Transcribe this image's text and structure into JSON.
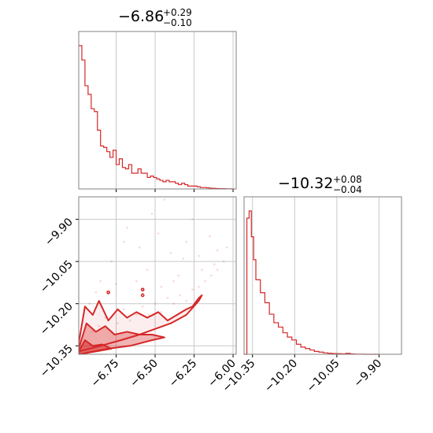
{
  "chart_data": [
    {
      "type": "histogram",
      "title": {
        "value": "−6.86",
        "plus": "+0.29",
        "minus": "−0.10"
      },
      "xlim": [
        -6.99,
        -5.98
      ],
      "xticks": [
        -6.75,
        -6.5,
        -6.25,
        -6.0
      ],
      "xtick_labels": [
        "−6.75",
        "−6.50",
        "−6.25",
        "−6.00"
      ],
      "grid": true,
      "color": "#d62728",
      "bins": [
        [
          -6.99,
          -6.97,
          1.0
        ],
        [
          -6.97,
          -6.95,
          0.9
        ],
        [
          -6.95,
          -6.93,
          0.72
        ],
        [
          -6.93,
          -6.91,
          0.66
        ],
        [
          -6.91,
          -6.89,
          0.56
        ],
        [
          -6.89,
          -6.87,
          0.54
        ],
        [
          -6.87,
          -6.85,
          0.41
        ],
        [
          -6.85,
          -6.83,
          0.3
        ],
        [
          -6.83,
          -6.81,
          0.29
        ],
        [
          -6.81,
          -6.79,
          0.26
        ],
        [
          -6.79,
          -6.77,
          0.22
        ],
        [
          -6.77,
          -6.75,
          0.27
        ],
        [
          -6.75,
          -6.73,
          0.17
        ],
        [
          -6.73,
          -6.71,
          0.21
        ],
        [
          -6.71,
          -6.69,
          0.15
        ],
        [
          -6.69,
          -6.67,
          0.14
        ],
        [
          -6.67,
          -6.65,
          0.17
        ],
        [
          -6.65,
          -6.63,
          0.11
        ],
        [
          -6.63,
          -6.61,
          0.11
        ],
        [
          -6.61,
          -6.59,
          0.14
        ],
        [
          -6.59,
          -6.57,
          0.11
        ],
        [
          -6.57,
          -6.55,
          0.11
        ],
        [
          -6.55,
          -6.53,
          0.08
        ],
        [
          -6.53,
          -6.51,
          0.09
        ],
        [
          -6.51,
          -6.49,
          0.08
        ],
        [
          -6.49,
          -6.47,
          0.07
        ],
        [
          -6.47,
          -6.45,
          0.06
        ],
        [
          -6.45,
          -6.43,
          0.05
        ],
        [
          -6.43,
          -6.41,
          0.06
        ],
        [
          -6.41,
          -6.39,
          0.05
        ],
        [
          -6.39,
          -6.37,
          0.05
        ],
        [
          -6.37,
          -6.35,
          0.04
        ],
        [
          -6.35,
          -6.33,
          0.03
        ],
        [
          -6.33,
          -6.31,
          0.04
        ],
        [
          -6.31,
          -6.29,
          0.03
        ],
        [
          -6.29,
          -6.27,
          0.02
        ],
        [
          -6.27,
          -6.25,
          0.02
        ],
        [
          -6.25,
          -6.23,
          0.02
        ],
        [
          -6.23,
          -6.21,
          0.015
        ],
        [
          -6.21,
          -6.19,
          0.01
        ],
        [
          -6.19,
          -6.17,
          0.01
        ],
        [
          -6.17,
          -6.15,
          0.008
        ],
        [
          -6.15,
          -6.13,
          0.005
        ],
        [
          -6.13,
          -6.11,
          0.004
        ],
        [
          -6.11,
          -6.09,
          0.003
        ],
        [
          -6.09,
          -6.07,
          0.002
        ],
        [
          -6.07,
          -6.05,
          0.002
        ],
        [
          -6.05,
          -6.03,
          0.001
        ],
        [
          -6.03,
          -6.01,
          0.001
        ],
        [
          -6.01,
          -5.99,
          0.0
        ]
      ]
    },
    {
      "type": "histogram",
      "title": {
        "value": "−10.32",
        "plus": "+0.08",
        "minus": "−0.04"
      },
      "xlim": [
        -10.38,
        -9.82
      ],
      "xticks": [
        -10.35,
        -10.2,
        -10.05,
        -9.9
      ],
      "xtick_labels": [
        "−10.35",
        "−10.20",
        "−10.05",
        "−9.90"
      ],
      "grid": true,
      "color": "#d62728",
      "bins": [
        [
          -10.38,
          -10.37,
          0.0
        ],
        [
          -10.37,
          -10.362,
          0.95
        ],
        [
          -10.362,
          -10.354,
          1.0
        ],
        [
          -10.354,
          -10.346,
          0.82
        ],
        [
          -10.346,
          -10.338,
          0.66
        ],
        [
          -10.338,
          -10.322,
          0.52
        ],
        [
          -10.322,
          -10.306,
          0.43
        ],
        [
          -10.306,
          -10.29,
          0.36
        ],
        [
          -10.29,
          -10.274,
          0.28
        ],
        [
          -10.274,
          -10.258,
          0.22
        ],
        [
          -10.258,
          -10.242,
          0.19
        ],
        [
          -10.242,
          -10.226,
          0.15
        ],
        [
          -10.226,
          -10.21,
          0.12
        ],
        [
          -10.21,
          -10.194,
          0.1
        ],
        [
          -10.194,
          -10.178,
          0.07
        ],
        [
          -10.178,
          -10.162,
          0.05
        ],
        [
          -10.162,
          -10.146,
          0.04
        ],
        [
          -10.146,
          -10.13,
          0.03
        ],
        [
          -10.13,
          -10.114,
          0.02
        ],
        [
          -10.114,
          -10.098,
          0.015
        ],
        [
          -10.098,
          -10.082,
          0.01
        ],
        [
          -10.082,
          -10.066,
          0.007
        ],
        [
          -10.066,
          -10.05,
          0.005
        ],
        [
          -10.05,
          -10.034,
          0.004
        ],
        [
          -10.034,
          -10.018,
          0.003
        ],
        [
          -10.018,
          -10.002,
          0.006
        ],
        [
          -10.002,
          -9.986,
          0.002
        ],
        [
          -9.986,
          -9.97,
          0.001
        ],
        [
          -9.97,
          -9.954,
          0.001
        ],
        [
          -9.954,
          -9.938,
          0.0
        ],
        [
          -9.938,
          -9.9,
          0.0
        ]
      ]
    },
    {
      "type": "scatter",
      "xlim": [
        -6.99,
        -5.98
      ],
      "ylim": [
        -10.38,
        -9.82
      ],
      "xticks": [
        -6.75,
        -6.5,
        -6.25,
        -6.0
      ],
      "xtick_labels": [
        "−6.75",
        "−6.50",
        "−6.25",
        "−6.00"
      ],
      "yticks": [
        -10.35,
        -10.2,
        -10.05,
        -9.9
      ],
      "ytick_labels": [
        "−10.35",
        "−10.20",
        "−10.05",
        "−9.90"
      ],
      "grid": true,
      "color": "#d62728",
      "points": [
        [
          -6.95,
          -10.33
        ],
        [
          -6.9,
          -10.3
        ],
        [
          -6.86,
          -10.28
        ],
        [
          -6.82,
          -10.25
        ],
        [
          -6.78,
          -10.3
        ],
        [
          -6.74,
          -10.27
        ],
        [
          -6.7,
          -10.22
        ],
        [
          -6.66,
          -10.26
        ],
        [
          -6.62,
          -10.24
        ],
        [
          -6.58,
          -10.21
        ],
        [
          -6.54,
          -10.24
        ],
        [
          -6.5,
          -10.2
        ],
        [
          -6.46,
          -10.23
        ],
        [
          -6.42,
          -10.18
        ],
        [
          -6.38,
          -10.2
        ],
        [
          -6.34,
          -10.17
        ],
        [
          -6.3,
          -10.19
        ],
        [
          -6.26,
          -10.15
        ],
        [
          -6.22,
          -10.14
        ],
        [
          -6.18,
          -10.12
        ],
        [
          -6.14,
          -10.1
        ],
        [
          -6.1,
          -10.08
        ],
        [
          -6.06,
          -10.05
        ],
        [
          -6.85,
          -10.12
        ],
        [
          -6.78,
          -10.05
        ],
        [
          -6.7,
          -9.98
        ],
        [
          -6.6,
          -10.0
        ],
        [
          -6.55,
          -10.08
        ],
        [
          -6.48,
          -9.95
        ],
        [
          -6.4,
          -10.02
        ],
        [
          -6.35,
          -10.1
        ],
        [
          -6.3,
          -9.98
        ],
        [
          -6.22,
          -10.03
        ],
        [
          -6.15,
          -9.96
        ],
        [
          -6.1,
          -10.01
        ],
        [
          -6.68,
          -9.93
        ],
        [
          -6.52,
          -9.88
        ],
        [
          -6.44,
          -9.83
        ],
        [
          -6.26,
          -9.9
        ],
        [
          -6.8,
          -10.16
        ],
        [
          -6.62,
          -10.12
        ],
        [
          -6.38,
          -10.12
        ],
        [
          -6.2,
          -10.08
        ],
        [
          -6.92,
          -10.2
        ],
        [
          -6.88,
          -10.16
        ],
        [
          -6.75,
          -10.13
        ],
        [
          -6.58,
          -10.15
        ],
        [
          -6.46,
          -10.14
        ],
        [
          -6.32,
          -10.04
        ],
        [
          -6.12,
          -10.06
        ],
        [
          -6.04,
          -10.0
        ]
      ],
      "contours": [
        {
          "level": "outer",
          "fill": false,
          "path": [
            [
              -6.99,
              -10.34
            ],
            [
              -6.95,
              -10.21
            ],
            [
              -6.9,
              -10.24
            ],
            [
              -6.86,
              -10.19
            ],
            [
              -6.8,
              -10.26
            ],
            [
              -6.74,
              -10.22
            ],
            [
              -6.68,
              -10.25
            ],
            [
              -6.62,
              -10.23
            ],
            [
              -6.55,
              -10.25
            ],
            [
              -6.48,
              -10.23
            ],
            [
              -6.42,
              -10.26
            ],
            [
              -6.36,
              -10.24
            ],
            [
              -6.3,
              -10.22
            ],
            [
              -6.26,
              -10.21
            ],
            [
              -6.22,
              -10.18
            ],
            [
              -6.2,
              -10.17
            ],
            [
              -6.22,
              -10.19
            ],
            [
              -6.3,
              -10.24
            ],
            [
              -6.4,
              -10.27
            ],
            [
              -6.5,
              -10.29
            ],
            [
              -6.6,
              -10.31
            ],
            [
              -6.72,
              -10.33
            ],
            [
              -6.85,
              -10.35
            ],
            [
              -6.99,
              -10.37
            ]
          ]
        },
        {
          "level": "middle",
          "fill": true,
          "path": [
            [
              -6.99,
              -10.36
            ],
            [
              -6.94,
              -10.27
            ],
            [
              -6.88,
              -10.3
            ],
            [
              -6.82,
              -10.28
            ],
            [
              -6.76,
              -10.31
            ],
            [
              -6.68,
              -10.3
            ],
            [
              -6.6,
              -10.31
            ],
            [
              -6.52,
              -10.31
            ],
            [
              -6.44,
              -10.32
            ],
            [
              -6.52,
              -10.33
            ],
            [
              -6.66,
              -10.35
            ],
            [
              -6.8,
              -10.36
            ],
            [
              -6.99,
              -10.38
            ]
          ]
        },
        {
          "level": "inner",
          "fill": true,
          "path": [
            [
              -6.99,
              -10.37
            ],
            [
              -6.95,
              -10.33
            ],
            [
              -6.9,
              -10.35
            ],
            [
              -6.84,
              -10.345
            ],
            [
              -6.78,
              -10.36
            ],
            [
              -6.88,
              -10.37
            ],
            [
              -6.99,
              -10.38
            ]
          ]
        }
      ],
      "isolated_contours": [
        [
          -6.8,
          -10.16
        ],
        [
          -6.58,
          -10.15
        ],
        [
          -6.58,
          -10.17
        ]
      ]
    }
  ]
}
